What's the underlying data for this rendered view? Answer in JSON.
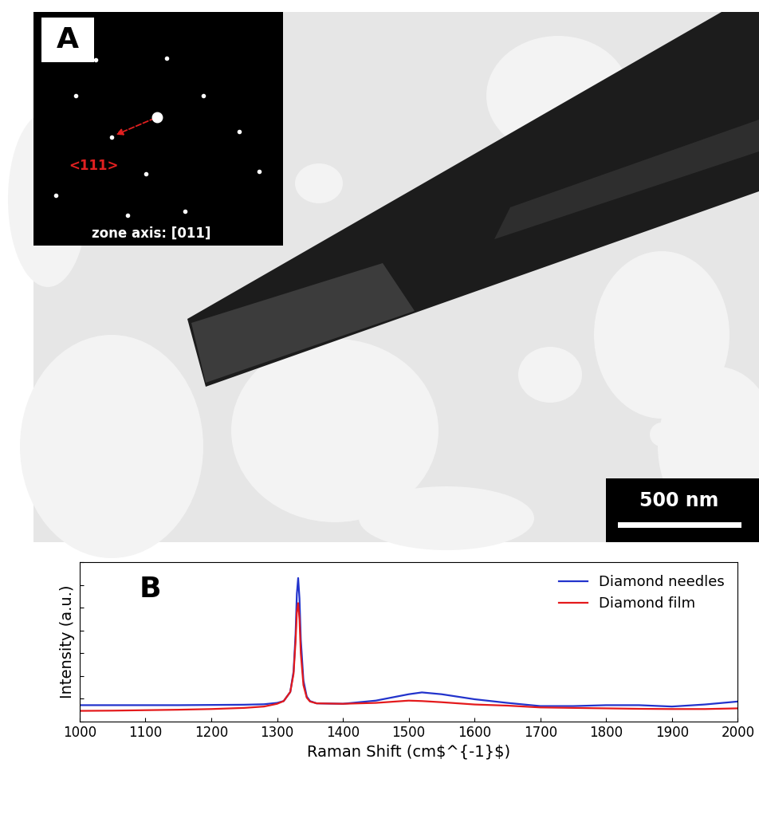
{
  "image": {
    "panel_label": "A",
    "inset_annotation": "<111>",
    "inset_caption": "zone axis: [011]",
    "scale_bar": "500 nm"
  },
  "chart_data": {
    "type": "line",
    "title": "B",
    "x_label": "Raman Shift (cm$^{-1}$)",
    "y_label": "Intensity (a.u.)",
    "x": [
      1000,
      1050,
      1100,
      1150,
      1200,
      1250,
      1280,
      1300,
      1310,
      1320,
      1325,
      1328,
      1330,
      1332,
      1334,
      1336,
      1340,
      1345,
      1350,
      1360,
      1400,
      1450,
      1500,
      1520,
      1550,
      1600,
      1650,
      1700,
      1750,
      1800,
      1850,
      1900,
      1950,
      2000
    ],
    "series": [
      {
        "name": "Diamond needles",
        "color": "#2233cc",
        "values": [
          0.72,
          0.72,
          0.72,
          0.72,
          0.73,
          0.74,
          0.76,
          0.82,
          0.9,
          1.3,
          2.2,
          3.8,
          5.6,
          6.3,
          5.4,
          3.6,
          1.8,
          1.1,
          0.9,
          0.8,
          0.78,
          0.92,
          1.2,
          1.28,
          1.2,
          0.98,
          0.82,
          0.68,
          0.68,
          0.72,
          0.72,
          0.66,
          0.75,
          0.88
        ]
      },
      {
        "name": "Diamond film",
        "color": "#e41a1c",
        "values": [
          0.47,
          0.48,
          0.5,
          0.52,
          0.55,
          0.6,
          0.66,
          0.78,
          0.9,
          1.3,
          2.1,
          3.5,
          4.8,
          5.2,
          4.5,
          3.0,
          1.6,
          1.05,
          0.88,
          0.8,
          0.78,
          0.82,
          0.92,
          0.9,
          0.85,
          0.75,
          0.7,
          0.62,
          0.6,
          0.58,
          0.56,
          0.55,
          0.55,
          0.58
        ]
      }
    ],
    "xlim": [
      1000,
      2000
    ],
    "xticks": [
      1000,
      1100,
      1200,
      1300,
      1400,
      1500,
      1600,
      1700,
      1800,
      1900,
      2000
    ],
    "ylim": [
      0,
      7
    ],
    "yticks": [
      0,
      1,
      2,
      3,
      4,
      5,
      6,
      7
    ],
    "tick_labels": "x",
    "legend": "upper right",
    "grid": false
  }
}
